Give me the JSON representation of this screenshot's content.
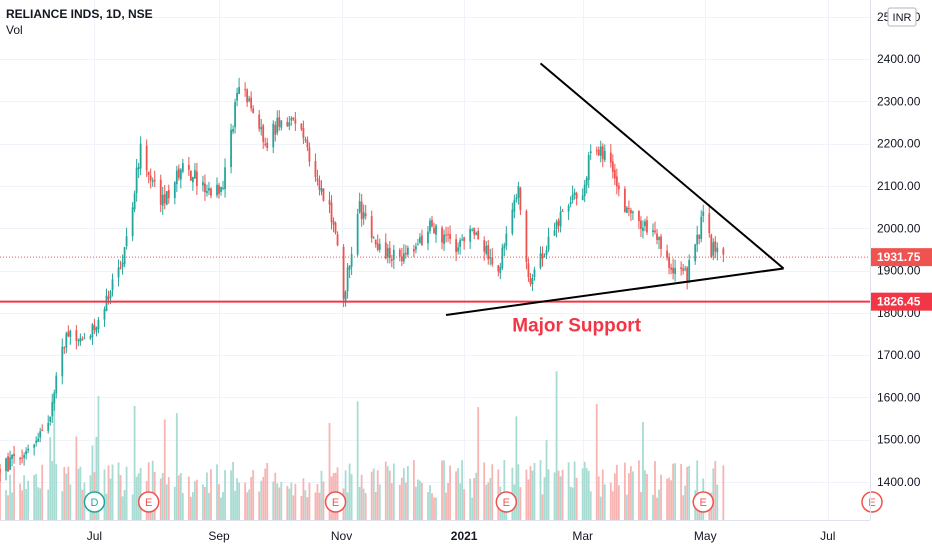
{
  "header": {
    "symbol": "RELIANCE INDS, 1D, NSE",
    "volume_label": "Vol"
  },
  "currency": "INR",
  "colors": {
    "up": "#26a69a",
    "down": "#ef5350",
    "support": "#f23645",
    "trendline": "#000000",
    "vol_up": "#a8dcd3",
    "vol_down": "#f7b4b2",
    "grid": "#f0f3fa",
    "axis_text": "#131722"
  },
  "chart_data": {
    "type": "candlestick",
    "y_axis": {
      "range": [
        1310,
        2540
      ],
      "ticks": [
        1400,
        1500,
        1600,
        1700,
        1800,
        1900,
        2000,
        2100,
        2200,
        2300,
        2400,
        2500
      ],
      "tick_labels": [
        "1400.00",
        "1500.00",
        "1600.00",
        "1700.00",
        "1800.00",
        "1900.00",
        "2000.00",
        "2100.00",
        "2200.00",
        "2300.00",
        "2400.00",
        "2500.00"
      ]
    },
    "x_axis": {
      "range": [
        "2020-05-15",
        "2021-07-22"
      ],
      "ticks": [
        "2020-07-01",
        "2020-09-01",
        "2020-11-01",
        "2021-01-01",
        "2021-03-01",
        "2021-05-01",
        "2021-07-01"
      ],
      "tick_labels": [
        "Jul",
        "Sep",
        "Nov",
        "2021",
        "Mar",
        "May",
        "Jul"
      ]
    },
    "series_points": [
      {
        "date": "2020-05-15",
        "price": 1430
      },
      {
        "date": "2020-05-28",
        "price": 1470
      },
      {
        "date": "2020-06-09",
        "price": 1560
      },
      {
        "date": "2020-06-17",
        "price": 1760
      },
      {
        "date": "2020-06-25",
        "price": 1720
      },
      {
        "date": "2020-07-10",
        "price": 1860
      },
      {
        "date": "2020-07-17",
        "price": 1970
      },
      {
        "date": "2020-07-24",
        "price": 2190
      },
      {
        "date": "2020-08-03",
        "price": 2050
      },
      {
        "date": "2020-08-14",
        "price": 2150
      },
      {
        "date": "2020-08-27",
        "price": 2080
      },
      {
        "date": "2020-09-03",
        "price": 2110
      },
      {
        "date": "2020-09-11",
        "price": 2340
      },
      {
        "date": "2020-09-25",
        "price": 2200
      },
      {
        "date": "2020-10-02",
        "price": 2270
      },
      {
        "date": "2020-10-12",
        "price": 2230
      },
      {
        "date": "2020-10-22",
        "price": 2080
      },
      {
        "date": "2020-10-28",
        "price": 2020
      },
      {
        "date": "2020-11-02",
        "price": 1840
      },
      {
        "date": "2020-11-10",
        "price": 2050
      },
      {
        "date": "2020-11-20",
        "price": 1950
      },
      {
        "date": "2020-12-03",
        "price": 1930
      },
      {
        "date": "2020-12-15",
        "price": 2000
      },
      {
        "date": "2020-12-28",
        "price": 1960
      },
      {
        "date": "2021-01-08",
        "price": 1990
      },
      {
        "date": "2021-01-18",
        "price": 1900
      },
      {
        "date": "2021-01-28",
        "price": 2100
      },
      {
        "date": "2021-02-03",
        "price": 1860
      },
      {
        "date": "2021-02-08",
        "price": 1930
      },
      {
        "date": "2021-02-18",
        "price": 2030
      },
      {
        "date": "2021-03-01",
        "price": 2090
      },
      {
        "date": "2021-03-06",
        "price": 2200
      },
      {
        "date": "2021-03-12",
        "price": 2180
      },
      {
        "date": "2021-03-22",
        "price": 2040
      },
      {
        "date": "2021-04-05",
        "price": 2000
      },
      {
        "date": "2021-04-14",
        "price": 1910
      },
      {
        "date": "2021-04-22",
        "price": 1890
      },
      {
        "date": "2021-04-30",
        "price": 2030
      },
      {
        "date": "2021-05-04",
        "price": 1950
      },
      {
        "date": "2021-05-10",
        "price": 1932
      }
    ],
    "last_price": {
      "value": 1931.75,
      "label": "1931.75"
    },
    "support_level": {
      "value": 1826.45,
      "label": "1826.45",
      "annotation": "Major Support"
    },
    "trendlines": [
      {
        "name": "upper",
        "from": {
          "date": "2021-02-08",
          "price": 2390
        },
        "to": {
          "date": "2021-06-09",
          "price": 1905
        }
      },
      {
        "name": "lower",
        "from": {
          "date": "2020-12-23",
          "price": 1795
        },
        "to": {
          "date": "2021-06-09",
          "price": 1905
        }
      }
    ],
    "events": [
      {
        "date": "2020-07-01",
        "label": "D"
      },
      {
        "date": "2020-07-28",
        "label": "E"
      },
      {
        "date": "2020-10-29",
        "label": "E"
      },
      {
        "date": "2021-01-22",
        "label": "E"
      },
      {
        "date": "2021-04-30",
        "label": "E"
      },
      {
        "date": "2021-07-23",
        "label": "E"
      }
    ]
  }
}
